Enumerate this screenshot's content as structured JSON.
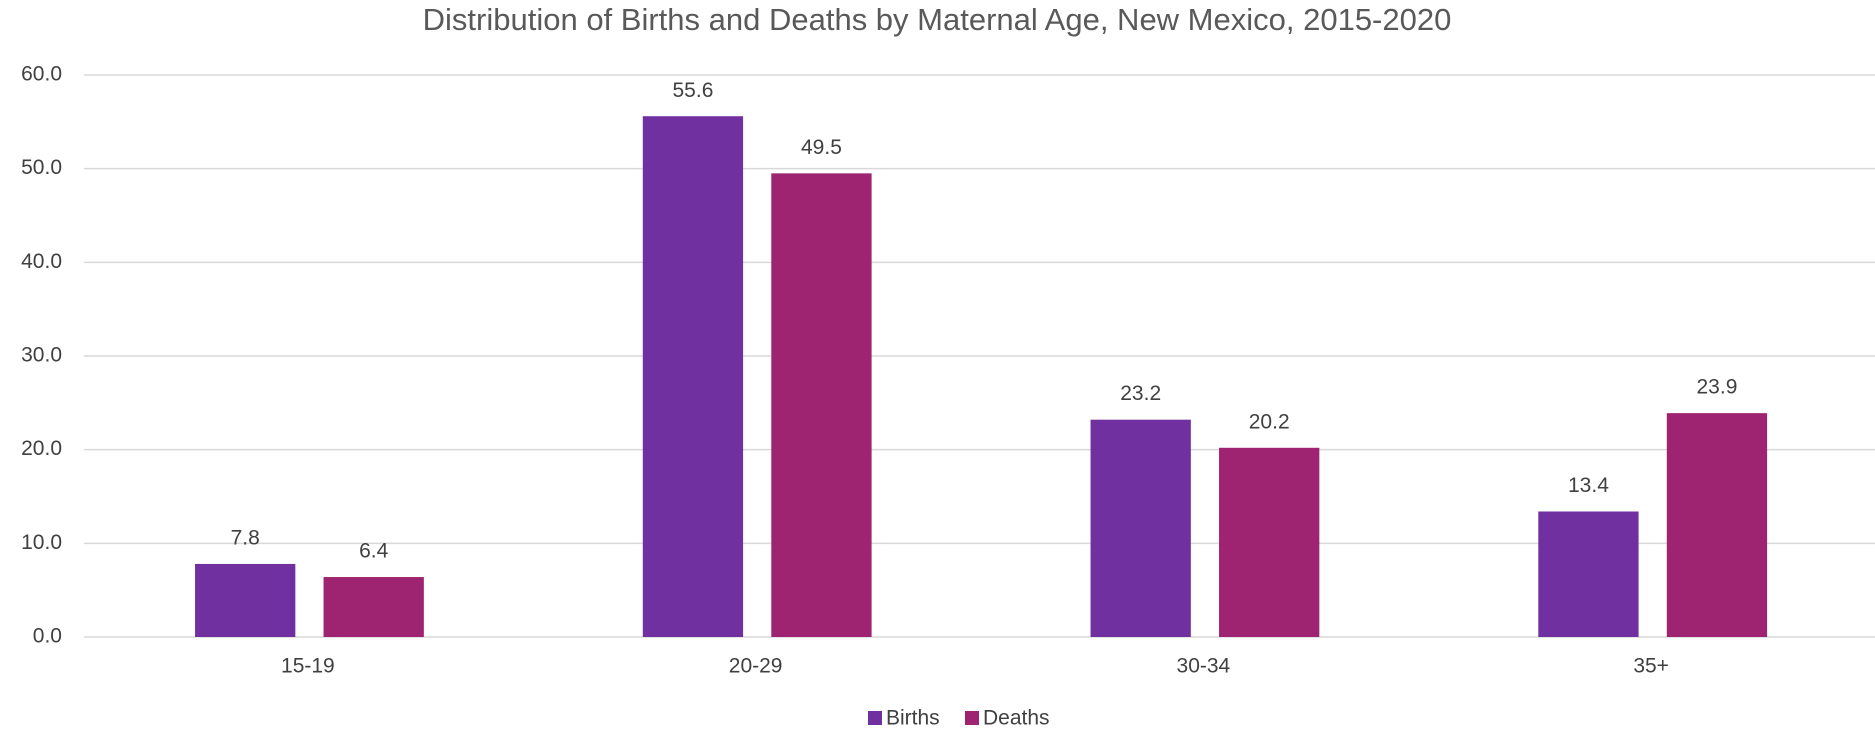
{
  "chart_data": {
    "type": "bar",
    "title": "Distribution of Births and Deaths by Maternal Age, New Mexico, 2015-2020",
    "categories": [
      "15-19",
      "20-29",
      "30-34",
      "35+"
    ],
    "series": [
      {
        "name": "Births",
        "color": "#7030a0",
        "values": [
          7.8,
          55.6,
          23.2,
          13.4
        ]
      },
      {
        "name": "Deaths",
        "color": "#9e2370",
        "values": [
          6.4,
          49.5,
          20.2,
          23.9
        ]
      }
    ],
    "ylim": [
      0,
      60
    ],
    "yticks": [
      {
        "value": 0,
        "label": "0.0"
      },
      {
        "value": 10,
        "label": "10.0"
      },
      {
        "value": 20,
        "label": "20.0"
      },
      {
        "value": 30,
        "label": "30.0"
      },
      {
        "value": 40,
        "label": "40.0"
      },
      {
        "value": 50,
        "label": "50.0"
      },
      {
        "value": 60,
        "label": "60.0"
      }
    ],
    "grid": true,
    "legend": "bottom"
  }
}
